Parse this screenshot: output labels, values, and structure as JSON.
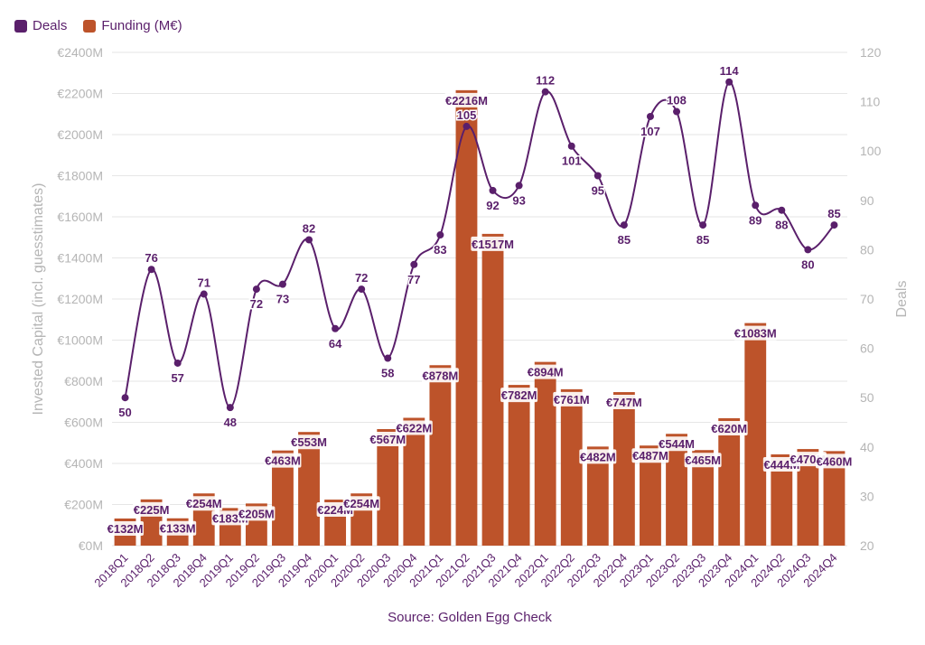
{
  "legend": {
    "deals_label": "Deals",
    "funding_label": "Funding (M€)"
  },
  "source": "Source: Golden Egg Check",
  "colors": {
    "deals": "#5a1f6b",
    "funding": "#bd532a",
    "text": "#5a1f6b",
    "axis": "#b5b5b5",
    "grid": "#e6e6e6"
  },
  "chart_data": {
    "type": "bar",
    "categories": [
      "2018Q1",
      "2018Q2",
      "2018Q3",
      "2018Q4",
      "2019Q1",
      "2019Q2",
      "2019Q3",
      "2019Q4",
      "2020Q1",
      "2020Q2",
      "2020Q3",
      "2020Q4",
      "2021Q1",
      "2021Q2",
      "2021Q3",
      "2021Q4",
      "2022Q1",
      "2022Q2",
      "2022Q3",
      "2022Q4",
      "2023Q1",
      "2023Q2",
      "2023Q3",
      "2023Q4",
      "2024Q1",
      "2024Q2",
      "2024Q3",
      "2024Q4"
    ],
    "series": [
      {
        "name": "Funding (M€)",
        "type": "bar",
        "axis": "left",
        "values": [
          132,
          225,
          133,
          254,
          183,
          205,
          463,
          553,
          224,
          254,
          567,
          622,
          878,
          2216,
          1517,
          782,
          894,
          761,
          482,
          747,
          487,
          544,
          465,
          620,
          1083,
          444,
          470,
          460
        ],
        "labels": [
          "€132M",
          "€225M",
          "€133M",
          "€254M",
          "€183M",
          "€205M",
          "€463M",
          "€553M",
          "€224M",
          "€254M",
          "€567M",
          "€622M",
          "€878M",
          "€2216M",
          "€1517M",
          "€782M",
          "€894M",
          "€761M",
          "€482M",
          "€747M",
          "€487M",
          "€544M",
          "€465M",
          "€620M",
          "€1083M",
          "€444M",
          "€470M",
          "€460M"
        ]
      },
      {
        "name": "Deals",
        "type": "line",
        "axis": "right",
        "values": [
          50,
          76,
          57,
          71,
          48,
          72,
          73,
          82,
          64,
          72,
          58,
          77,
          83,
          105,
          92,
          93,
          112,
          101,
          95,
          85,
          107,
          108,
          85,
          114,
          89,
          88,
          80,
          85
        ]
      }
    ],
    "ylabel": "Invested Capital (incl. guesstimates)",
    "y2label": "Deals",
    "ylim": [
      0,
      2400
    ],
    "y2lim": [
      20,
      120
    ],
    "yticks": [
      "€0M",
      "€200M",
      "€400M",
      "€600M",
      "€800M",
      "€1000M",
      "€1200M",
      "€1400M",
      "€1600M",
      "€1800M",
      "€2000M",
      "€2200M",
      "€2400M"
    ],
    "y2ticks": [
      "20",
      "30",
      "40",
      "50",
      "60",
      "70",
      "80",
      "90",
      "100",
      "110",
      "120"
    ],
    "grid": true,
    "legend_position": "top-left"
  }
}
